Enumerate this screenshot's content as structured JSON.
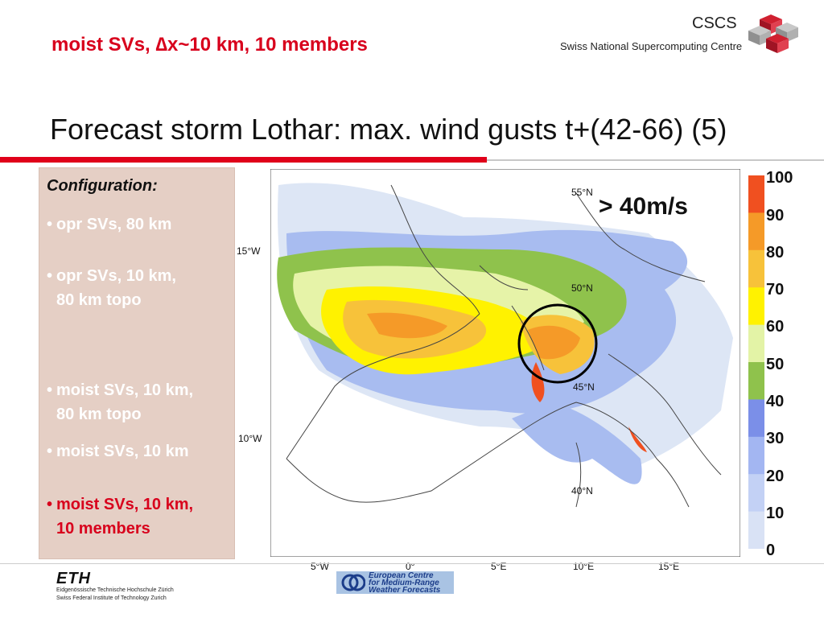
{
  "header": {
    "subtitle": "moist SVs, ∆x~10 km, 10 members",
    "org_short": "CSCS",
    "org_full": "Swiss National Supercomputing Centre",
    "title": "Forecast storm Lothar: max. wind gusts t+(42-66) (5)"
  },
  "config": {
    "heading": "Configuration:",
    "items": [
      {
        "line1": "opr SVs, 80 km",
        "line2": ""
      },
      {
        "line1": "opr SVs, 10 km,",
        "line2": "80 km topo"
      },
      {
        "line1": "moist SVs, 10 km,",
        "line2": "80 km topo"
      },
      {
        "line1": "moist SVs, 10 km",
        "line2": ""
      },
      {
        "line1": "moist SVs, 10 km,",
        "line2": "10 members"
      }
    ],
    "active_color": "#d8001c"
  },
  "map": {
    "annotation": "> 40m/s",
    "lat_labels": [
      "55°N",
      "50°N",
      "45°N",
      "40°N"
    ],
    "west_labels": [
      "15°W",
      "10°W"
    ],
    "lon_labels": [
      "5°W",
      "0°",
      "5°E",
      "10°E",
      "15°E"
    ]
  },
  "colorbar": {
    "labels": [
      "100",
      "90",
      "80",
      "70",
      "60",
      "50",
      "40",
      "30",
      "20",
      "10",
      "0"
    ],
    "colors": [
      "#f05020",
      "#f59a28",
      "#f7c23a",
      "#fff200",
      "#e3f3a6",
      "#8fc24c",
      "#7b8fe8",
      "#a3b6f2",
      "#c3d1f5",
      "#d9e2f5"
    ]
  },
  "footer": {
    "eth_logo": "ETH",
    "eth_line1": "Eidgenössische Technische Hochschule Zürich",
    "eth_line2": "Swiss Federal Institute of Technology Zurich",
    "ecmwf_line1": "European Centre",
    "ecmwf_line2": "for Medium-Range",
    "ecmwf_line3": "Weather Forecasts"
  }
}
